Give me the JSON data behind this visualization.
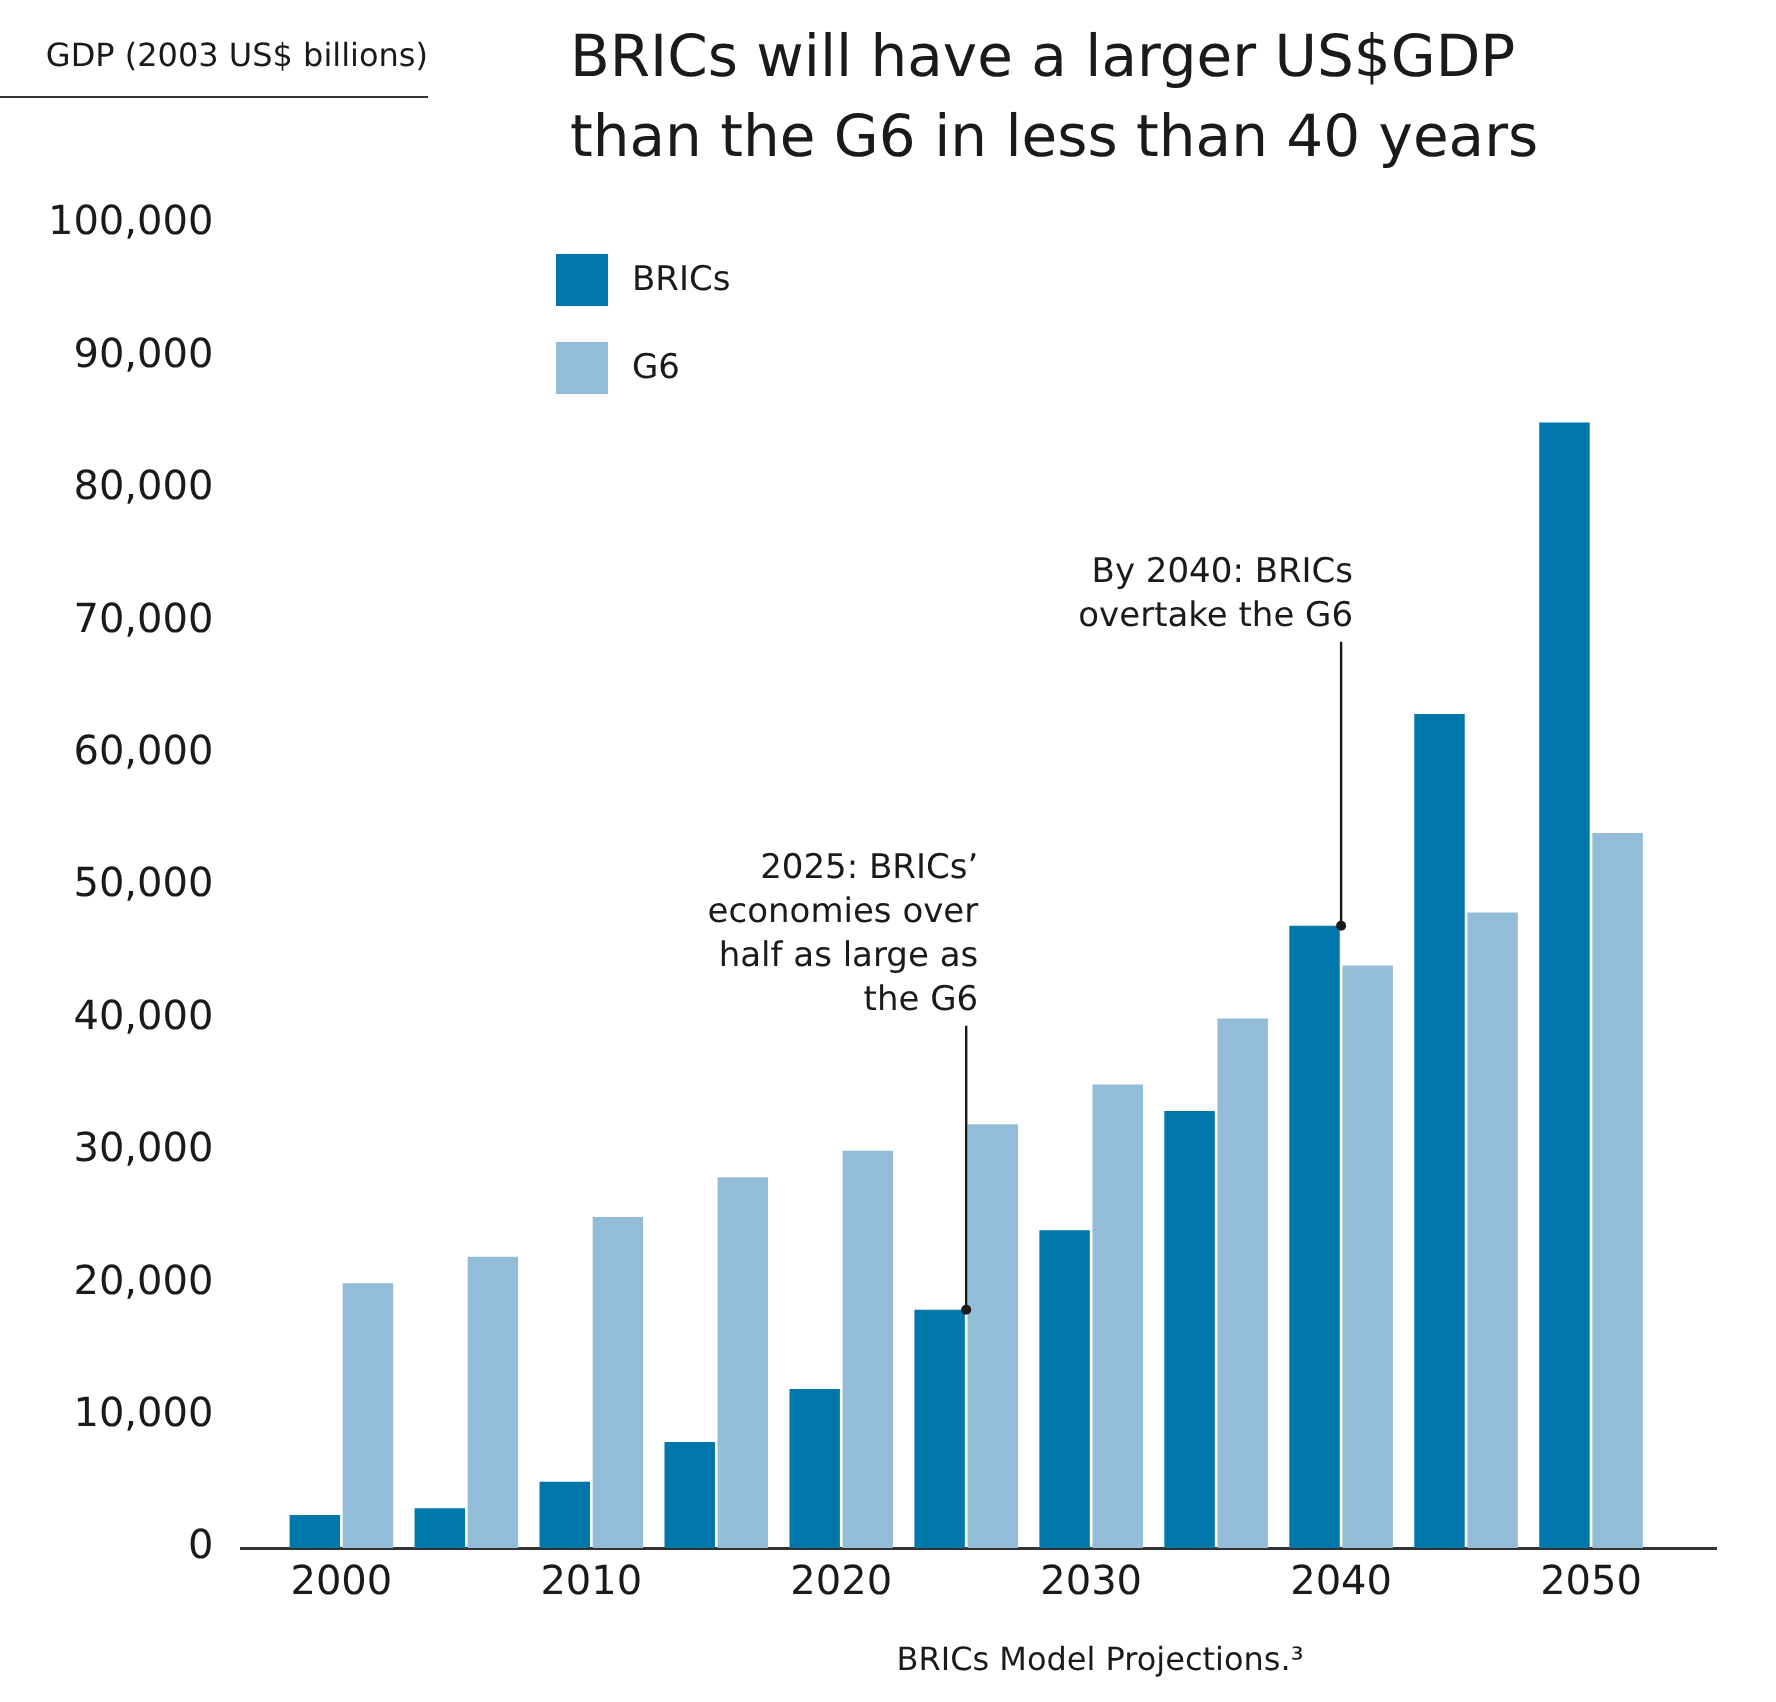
{
  "chart_data": {
    "type": "bar",
    "title": "BRICs will have a larger US$GDP than the G6 in less than 40 years",
    "ylabel": "GDP (2003 US$ billions)",
    "x": [
      2000,
      2005,
      2010,
      2015,
      2020,
      2025,
      2030,
      2035,
      2040,
      2045,
      2050
    ],
    "xlim": [
      1996,
      2055
    ],
    "xticks": [
      2000,
      2010,
      2020,
      2030,
      2040,
      2050
    ],
    "series": [
      {
        "name": "BRICs",
        "color": "#0077aa",
        "values": [
          2500,
          3000,
          5000,
          8000,
          12000,
          18000,
          24000,
          33000,
          47000,
          63000,
          85000
        ]
      },
      {
        "name": "G6",
        "color": "#92bcd8",
        "values": [
          20000,
          22000,
          25000,
          28000,
          30000,
          32000,
          35000,
          40000,
          44000,
          48000,
          54000
        ]
      }
    ],
    "ylim": [
      0,
      100000
    ],
    "yticks": [
      0,
      {
        "value": 10000,
        "label": "10,000"
      },
      {
        "value": 20000,
        "label": "20,000"
      },
      {
        "value": 30000,
        "label": "30,000"
      },
      {
        "value": 40000,
        "label": "40,000"
      },
      {
        "value": 50000,
        "label": "50,000"
      },
      {
        "value": 60000,
        "label": "60,000"
      },
      {
        "value": 70000,
        "label": "70,000"
      },
      {
        "value": 80000,
        "label": "80,000"
      },
      {
        "value": 90000,
        "label": "90,000"
      },
      {
        "value": 100000,
        "label": "100,000"
      }
    ],
    "grid": false,
    "legend": "top left",
    "annotations": [
      {
        "text": "2025: BRICs’ economies over half as large as the G6",
        "x": 2025,
        "y": 18000
      },
      {
        "text": "By 2040: BRICs overtake the G6",
        "x": 2040,
        "y": 47000
      },
      "BRICs Model Projections.³"
    ]
  }
}
